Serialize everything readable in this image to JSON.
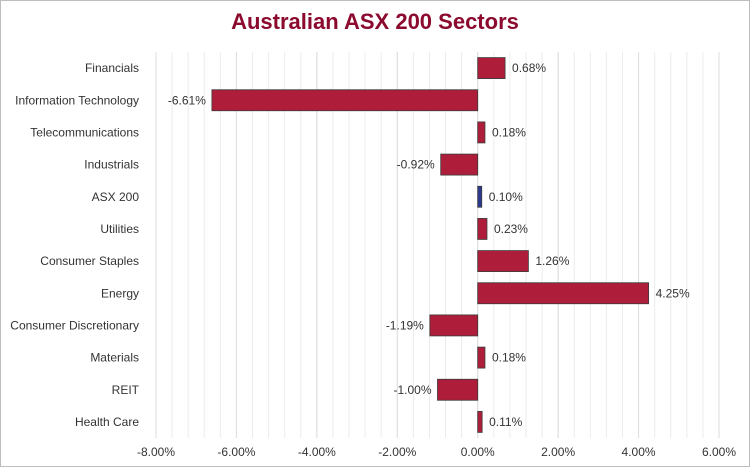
{
  "chart_data": {
    "type": "bar",
    "orientation": "horizontal",
    "title": "Australian ASX 200 Sectors",
    "categories": [
      "Financials",
      "Information Technology",
      "Telecommunications",
      "Industrials",
      "ASX 200",
      "Utilities",
      "Consumer Staples",
      "Energy",
      "Consumer Discretionary",
      "Materials",
      "REIT",
      "Health Care"
    ],
    "values": [
      0.68,
      -6.61,
      0.18,
      -0.92,
      0.1,
      0.23,
      1.26,
      4.25,
      -1.19,
      0.18,
      -1.0,
      0.11
    ],
    "labels": [
      "0.68%",
      "-6.61%",
      "0.18%",
      "-0.92%",
      "0.10%",
      "0.23%",
      "1.26%",
      "4.25%",
      "-1.19%",
      "0.18%",
      "-1.00%",
      "0.11%"
    ],
    "xlim": [
      -8,
      6
    ],
    "xticks": [
      -8,
      -6,
      -4,
      -2,
      0,
      2,
      4,
      6
    ],
    "xtick_labels": [
      "-8.00%",
      "-6.00%",
      "-4.00%",
      "-2.00%",
      "0.00%",
      "2.00%",
      "4.00%",
      "6.00%"
    ],
    "minor_grid_step": 0.4,
    "grid": true,
    "xlabel": "",
    "ylabel": "",
    "colors": {
      "default": "#ae1e3a",
      "highlight": "#2b3990",
      "highlight_category": "ASX 200",
      "title": "#8b0a2e"
    }
  }
}
